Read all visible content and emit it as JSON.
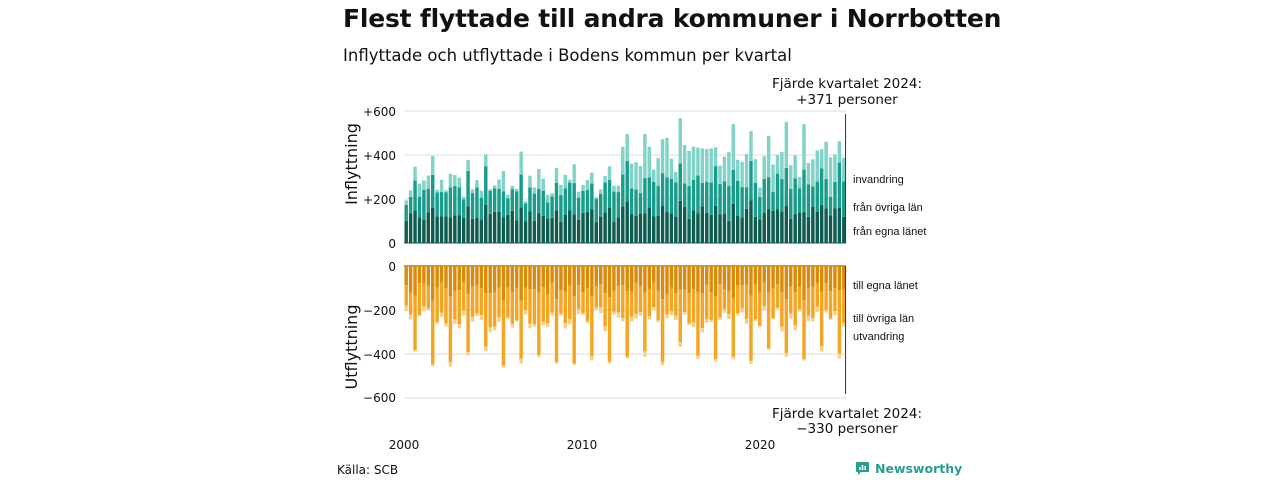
{
  "title": "Flest flyttade till andra kommuner i Norrbotten",
  "subtitle": "Inflyttade och utflyttade i Bodens kommun per kvartal",
  "source": "Källa: SCB",
  "brand": {
    "name": "Newsworthy",
    "color": "#2a9d8f"
  },
  "chart_data": [
    {
      "type": "bar",
      "stacked": true,
      "ylabel": "Inflyttning",
      "ylim": [
        0,
        600
      ],
      "yticks": [
        "0",
        "+200",
        "+400",
        "+600"
      ],
      "x_range": [
        "2000 Q1",
        "2024 Q4"
      ],
      "grid": true,
      "legend_placement": "right",
      "series": [
        {
          "name": "från egna länet",
          "color": "#0f5c50"
        },
        {
          "name": "från övriga län",
          "color": "#1a9c8a"
        },
        {
          "name": "invandring",
          "color": "#82d3c7"
        }
      ],
      "annotation": {
        "line1": "Fjärde kvartalet 2024:",
        "line2": "+371 personer"
      }
    },
    {
      "type": "bar",
      "stacked": true,
      "ylabel": "Utflyttning",
      "ylim": [
        -600,
        0
      ],
      "yticks": [
        "0",
        "−200",
        "−400",
        "−600"
      ],
      "x_range": [
        "2000 Q1",
        "2024 Q4"
      ],
      "grid": true,
      "legend_placement": "right",
      "series": [
        {
          "name": "till egna länet",
          "color": "#d98b0c"
        },
        {
          "name": "till övriga län",
          "color": "#f5a524"
        },
        {
          "name": "utvandring",
          "color": "#f9cf86"
        }
      ],
      "annotation": {
        "line1": "Fjärde kvartalet 2024:",
        "line2": "−330 personer"
      }
    }
  ],
  "xticks": [
    "2000",
    "2010",
    "2020"
  ]
}
